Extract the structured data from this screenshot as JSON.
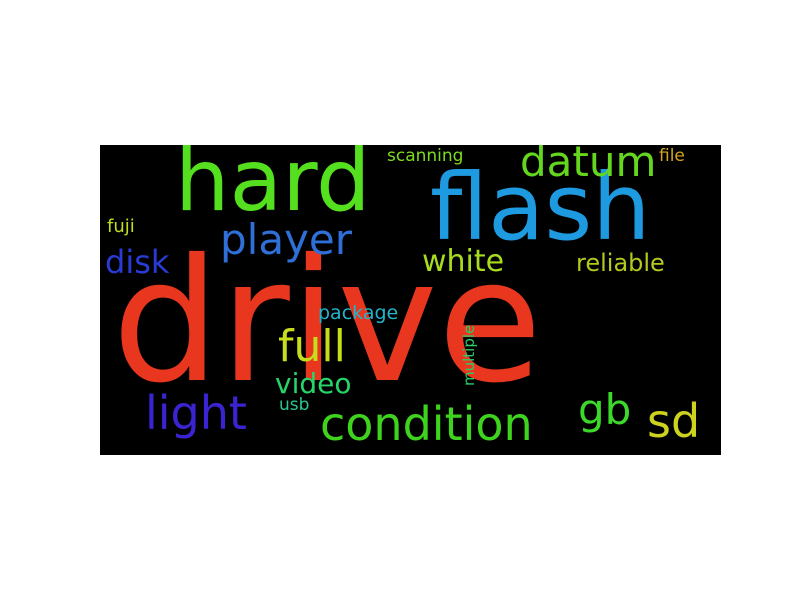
{
  "words": [
    {
      "text": "drive",
      "color": "#e8371e"
    },
    {
      "text": "flash",
      "color": "#1e9be0"
    },
    {
      "text": "hard",
      "color": "#54e01e"
    },
    {
      "text": "player",
      "color": "#2f6fd8"
    },
    {
      "text": "datum",
      "color": "#64d61e"
    },
    {
      "text": "condition",
      "color": "#3ed41e"
    },
    {
      "text": "light",
      "color": "#3a24d2"
    },
    {
      "text": "full",
      "color": "#c8dc1e"
    },
    {
      "text": "gb",
      "color": "#3cd82a"
    },
    {
      "text": "sd",
      "color": "#cdd21e"
    },
    {
      "text": "white",
      "color": "#a8dc1e"
    },
    {
      "text": "reliable",
      "color": "#b4c81e"
    },
    {
      "text": "disk",
      "color": "#2a3ad6"
    },
    {
      "text": "video",
      "color": "#24d66a"
    },
    {
      "text": "package",
      "color": "#22b4cc"
    },
    {
      "text": "scanning",
      "color": "#7edc1e"
    },
    {
      "text": "file",
      "color": "#d6a41e"
    },
    {
      "text": "fuji",
      "color": "#c4dc1e"
    },
    {
      "text": "usb",
      "color": "#28c894"
    },
    {
      "text": "multiple",
      "color": "#2ccc6a"
    }
  ]
}
